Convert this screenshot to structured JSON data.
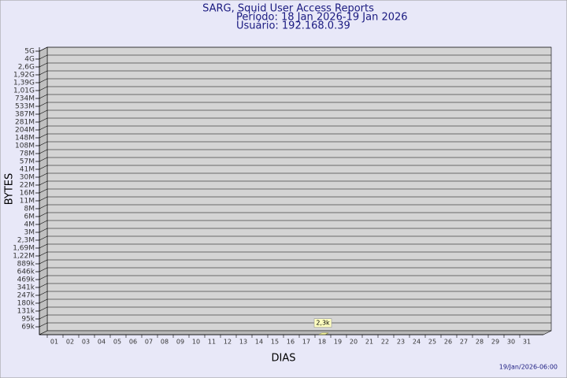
{
  "chart_data": {
    "type": "bar",
    "title": "SARG, Squid User Access Reports",
    "subtitle": "Período: 18 Jan 2026-19 Jan 2026",
    "user_line": "Usuário: 192.168.0.39",
    "x_label": "DIAS",
    "y_label": "BYTES",
    "timestamp": "19/Jan/2026-06:00",
    "categories": [
      "01",
      "02",
      "03",
      "04",
      "05",
      "06",
      "07",
      "08",
      "09",
      "10",
      "11",
      "12",
      "13",
      "14",
      "15",
      "16",
      "17",
      "18",
      "19",
      "20",
      "21",
      "22",
      "23",
      "24",
      "25",
      "26",
      "27",
      "28",
      "29",
      "30",
      "31"
    ],
    "values": [
      null,
      null,
      null,
      null,
      null,
      null,
      null,
      null,
      null,
      null,
      null,
      null,
      null,
      null,
      null,
      null,
      null,
      2300,
      null,
      null,
      null,
      null,
      null,
      null,
      null,
      null,
      null,
      null,
      null,
      null,
      null
    ],
    "value_labels": [
      null,
      null,
      null,
      null,
      null,
      null,
      null,
      null,
      null,
      null,
      null,
      null,
      null,
      null,
      null,
      null,
      null,
      "2,3k",
      null,
      null,
      null,
      null,
      null,
      null,
      null,
      null,
      null,
      null,
      null,
      null,
      null
    ],
    "color": "#f0f080",
    "ylim": [
      0,
      5000000000
    ],
    "yticks": [
      {
        "value": 69000,
        "label": "69k"
      },
      {
        "value": 95000,
        "label": "95k"
      },
      {
        "value": 131000,
        "label": "131k"
      },
      {
        "value": 180000,
        "label": "180k"
      },
      {
        "value": 247000,
        "label": "247k"
      },
      {
        "value": 341000,
        "label": "341k"
      },
      {
        "value": 469000,
        "label": "469k"
      },
      {
        "value": 646000,
        "label": "646k"
      },
      {
        "value": 889000,
        "label": "889k"
      },
      {
        "value": 1220000,
        "label": "1,22M"
      },
      {
        "value": 1690000,
        "label": "1,69M"
      },
      {
        "value": 2300000,
        "label": "2,3M"
      },
      {
        "value": 3000000,
        "label": "3M"
      },
      {
        "value": 4000000,
        "label": "4M"
      },
      {
        "value": 6000000,
        "label": "6M"
      },
      {
        "value": 8000000,
        "label": "8M"
      },
      {
        "value": 11000000,
        "label": "11M"
      },
      {
        "value": 16000000,
        "label": "16M"
      },
      {
        "value": 22000000,
        "label": "22M"
      },
      {
        "value": 30000000,
        "label": "30M"
      },
      {
        "value": 41000000,
        "label": "41M"
      },
      {
        "value": 57000000,
        "label": "57M"
      },
      {
        "value": 78000000,
        "label": "78M"
      },
      {
        "value": 108000000,
        "label": "108M"
      },
      {
        "value": 148000000,
        "label": "148M"
      },
      {
        "value": 204000000,
        "label": "204M"
      },
      {
        "value": 281000000,
        "label": "281M"
      },
      {
        "value": 387000000,
        "label": "387M"
      },
      {
        "value": 533000000,
        "label": "533M"
      },
      {
        "value": 734000000,
        "label": "734M"
      },
      {
        "value": 1010000000,
        "label": "1,01G"
      },
      {
        "value": 1390000000,
        "label": "1,39G"
      },
      {
        "value": 1920000000,
        "label": "1,92G"
      },
      {
        "value": 2600000000,
        "label": "2,6G"
      },
      {
        "value": 4000000000,
        "label": "4G"
      },
      {
        "value": 5000000000,
        "label": "5G"
      }
    ],
    "grid": true
  }
}
